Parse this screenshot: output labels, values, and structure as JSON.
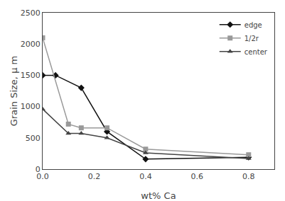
{
  "chart_data": {
    "type": "line",
    "xlabel": "wt% Ca",
    "ylabel": "Grain Size, μ m",
    "series": [
      {
        "name": "edge",
        "color": "#111111",
        "marker": "diamond",
        "x": [
          0.0,
          0.05,
          0.15,
          0.25,
          0.4,
          0.8
        ],
        "values": [
          1500,
          1500,
          1300,
          600,
          160,
          190
        ]
      },
      {
        "name": "1/2r",
        "color": "#999999",
        "marker": "square",
        "x": [
          0.0,
          0.1,
          0.15,
          0.25,
          0.4,
          0.8
        ],
        "values": [
          2100,
          720,
          660,
          660,
          320,
          230
        ]
      },
      {
        "name": "center",
        "color": "#444444",
        "marker": "triangle-up",
        "x": [
          0.0,
          0.1,
          0.15,
          0.25,
          0.4,
          0.8
        ],
        "values": [
          960,
          570,
          570,
          500,
          260,
          170
        ]
      }
    ],
    "xlim": [
      0,
      0.9
    ],
    "xticks": [
      {
        "value": 0,
        "label": "0.0"
      },
      0.2,
      0.4,
      0.6,
      0.8
    ],
    "ylim": [
      0,
      2500
    ],
    "yticks": [
      0,
      500,
      1000,
      1500,
      2000,
      2500
    ],
    "grid": false,
    "legend": "upper right"
  }
}
